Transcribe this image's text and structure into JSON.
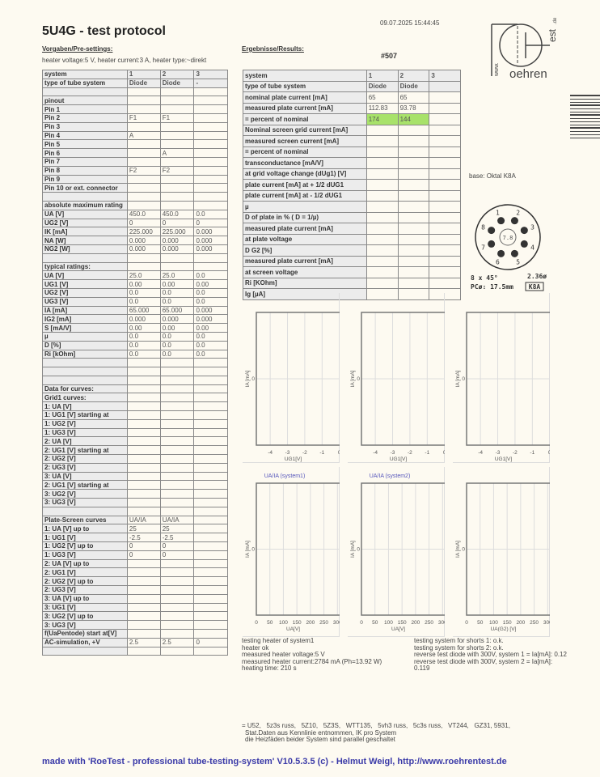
{
  "header": {
    "title": "5U4G  -  test protocol",
    "datetime": "09.07.2025  15:44:45",
    "number": "#507"
  },
  "presettings": {
    "heading": "Vorgaben/Pre-settings:",
    "heater": "heater voltage:5 V, heater current:3 A, heater type:~direkt"
  },
  "results_heading": "Ergebnisse/Results:",
  "left_table": [
    [
      "system",
      "1",
      "2",
      "3"
    ],
    [
      "type of tube system",
      "Diode",
      "Diode",
      "-"
    ],
    [
      "",
      "",
      "",
      ""
    ],
    [
      "pinout",
      "",
      "",
      ""
    ],
    [
      "Pin 1",
      "",
      "",
      ""
    ],
    [
      "Pin 2",
      "F1",
      "F1",
      ""
    ],
    [
      "Pin 3",
      "",
      "",
      ""
    ],
    [
      "Pin 4",
      "A",
      "",
      ""
    ],
    [
      "Pin 5",
      "",
      "",
      ""
    ],
    [
      "Pin 6",
      "",
      "A",
      ""
    ],
    [
      "Pin 7",
      "",
      "",
      ""
    ],
    [
      "Pin 8",
      "F2",
      "F2",
      ""
    ],
    [
      "Pin 9",
      "",
      "",
      ""
    ],
    [
      "Pin 10 or ext. connector",
      "",
      "",
      ""
    ],
    [
      "",
      "",
      "",
      ""
    ],
    [
      "absolute maximum rating",
      "",
      "",
      ""
    ],
    [
      "UA [V]",
      "450.0",
      "450.0",
      "0.0"
    ],
    [
      "UG2 [V]",
      "0",
      "0",
      "0"
    ],
    [
      "IK [mA]",
      "225.000",
      "225.000",
      "0.000"
    ],
    [
      "NA [W]",
      "0.000",
      "0.000",
      "0.000"
    ],
    [
      "NG2 [W]",
      "0.000",
      "0.000",
      "0.000"
    ],
    [
      "",
      "",
      "",
      ""
    ],
    [
      "typical ratings:",
      "",
      "",
      ""
    ],
    [
      "UA [V]",
      "25.0",
      "25.0",
      "0.0"
    ],
    [
      "UG1 [V]",
      "0.00",
      "0.00",
      "0.00"
    ],
    [
      "UG2 [V]",
      "0.0",
      "0.0",
      "0.0"
    ],
    [
      "UG3 [V]",
      "0.0",
      "0.0",
      "0.0"
    ],
    [
      "IA [mA]",
      "65.000",
      "65.000",
      "0.000"
    ],
    [
      "IG2 [mA]",
      "0.000",
      "0.000",
      "0.000"
    ],
    [
      "S [mA/V]",
      "0.00",
      "0.00",
      "0.00"
    ],
    [
      "µ",
      "0.0",
      "0.0",
      "0.0"
    ],
    [
      "D [%]",
      "0.0",
      "0.0",
      "0.0"
    ],
    [
      "Ri [kOhm]",
      "0.0",
      "0.0",
      "0.0"
    ],
    [
      "",
      "",
      "",
      ""
    ],
    [
      "",
      "",
      "",
      ""
    ],
    [
      "",
      "",
      "",
      ""
    ],
    [
      "Data for curves:",
      "",
      "",
      ""
    ],
    [
      "Grid1 curves:",
      "",
      "",
      ""
    ],
    [
      "1: UA [V]",
      "",
      "",
      ""
    ],
    [
      "1: UG1 [V] starting at",
      "",
      "",
      ""
    ],
    [
      "1: UG2 [V]",
      "",
      "",
      ""
    ],
    [
      "1: UG3 [V]",
      "",
      "",
      ""
    ],
    [
      "2: UA [V]",
      "",
      "",
      ""
    ],
    [
      "2: UG1 [V] starting at",
      "",
      "",
      ""
    ],
    [
      "2: UG2 [V]",
      "",
      "",
      ""
    ],
    [
      "2: UG3 [V]",
      "",
      "",
      ""
    ],
    [
      "3: UA [V]",
      "",
      "",
      ""
    ],
    [
      "2: UG1 [V] starting at",
      "",
      "",
      ""
    ],
    [
      "3: UG2 [V]",
      "",
      "",
      ""
    ],
    [
      "3: UG3 [V]",
      "",
      "",
      ""
    ],
    [
      "",
      "",
      "",
      ""
    ],
    [
      "Plate-Screen curves",
      "UA/IA",
      "UA/IA",
      ""
    ],
    [
      "1: UA [V] up to",
      "25",
      "25",
      ""
    ],
    [
      "1: UG1 [V]",
      "-2.5",
      "-2.5",
      ""
    ],
    [
      "1: UG2 [V] up to",
      "0",
      "0",
      ""
    ],
    [
      "1: UG3 [V]",
      "0",
      "0",
      ""
    ],
    [
      "2: UA [V] up to",
      "",
      "",
      ""
    ],
    [
      "2: UG1 [V]",
      "",
      "",
      ""
    ],
    [
      "2: UG2 [V] up to",
      "",
      "",
      ""
    ],
    [
      "2: UG3 [V]",
      "",
      "",
      ""
    ],
    [
      "3: UA [V] up to",
      "",
      "",
      ""
    ],
    [
      "3: UG1 [V]",
      "",
      "",
      ""
    ],
    [
      "3: UG2 [V] up to",
      "",
      "",
      ""
    ],
    [
      "3: UG3 [V]",
      "",
      "",
      ""
    ],
    [
      "f(UaPentode) start at[V]",
      "",
      "",
      ""
    ],
    [
      "AC-simulation, +V",
      "2.5",
      "2.5",
      "0"
    ],
    [
      "",
      "",
      "",
      ""
    ]
  ],
  "right_table": [
    [
      "system",
      "1",
      "2",
      "3"
    ],
    [
      "type of tube system",
      "Diode",
      "Diode",
      ""
    ],
    [
      "nominal plate current [mA]",
      "65",
      "65",
      ""
    ],
    [
      "measured plate current [mA]",
      "112.83",
      "93.78",
      ""
    ],
    [
      "= percent of nominal",
      "174",
      "144",
      ""
    ],
    [
      "Nominal screen grid current [mA]",
      "",
      "",
      ""
    ],
    [
      "measured screen current [mA]",
      "",
      "",
      ""
    ],
    [
      "= percent of nominal",
      "",
      "",
      ""
    ],
    [
      "transconductance [mA/V]",
      "",
      "",
      ""
    ],
    [
      "at grid voltage change (dUg1) [V]",
      "",
      "",
      ""
    ],
    [
      "plate current [mA] at + 1/2 dUG1",
      "",
      "",
      ""
    ],
    [
      "plate current [mA] at - 1/2 dUG1",
      "",
      "",
      ""
    ],
    [
      "µ",
      "",
      "",
      ""
    ],
    [
      "D of plate in % ( D = 1/µ)",
      "",
      "",
      ""
    ],
    [
      "measured plate current [mA]",
      "",
      "",
      ""
    ],
    [
      "at plate voltage",
      "",
      "",
      ""
    ],
    [
      "D G2 [%]",
      "",
      "",
      ""
    ],
    [
      "measured plate current [mA]",
      "",
      "",
      ""
    ],
    [
      "at screen voltage",
      "",
      "",
      ""
    ],
    [
      "Ri [KOhm]",
      "",
      "",
      ""
    ],
    [
      "Ig [µA]",
      "",
      "",
      ""
    ]
  ],
  "highlight_color": "#a8e26a",
  "logo": {
    "text": "www.Roehrentest.de"
  },
  "base": {
    "label": "base: Oktal K8A",
    "pins": [
      "1",
      "2",
      "3",
      "4",
      "5",
      "6",
      "7",
      "8"
    ],
    "center": "7.8",
    "spec1": "8 x 45°",
    "spec2": "2.36ø",
    "spec3": "PCø: 17.5mm",
    "code": "K8A"
  },
  "chart_data": [
    {
      "type": "scatter",
      "title": "",
      "xlabel": "UG1[V]",
      "ylabel": "IA [mA]",
      "xlim": [
        -4.8,
        0
      ],
      "xticks": [
        "-4",
        "-3",
        "-2",
        "-1",
        "0"
      ],
      "yticks": [
        "0"
      ],
      "grid": true,
      "series": []
    },
    {
      "type": "scatter",
      "title": "",
      "xlabel": "UG1[V]",
      "ylabel": "IA [mA]",
      "xlim": [
        -4.8,
        0
      ],
      "xticks": [
        "-4",
        "-3",
        "-2",
        "-1",
        "0"
      ],
      "yticks": [
        "0"
      ],
      "grid": true,
      "series": []
    },
    {
      "type": "scatter",
      "title": "",
      "xlabel": "UG1[V]",
      "ylabel": "IA [mA]",
      "xlim": [
        -4.8,
        0
      ],
      "xticks": [
        "-4",
        "-3",
        "-2",
        "-1",
        "0"
      ],
      "yticks": [
        "0"
      ],
      "grid": true,
      "series": []
    },
    {
      "type": "scatter",
      "title": "UA/IA (system1)",
      "xlabel": "UA[V]",
      "ylabel": "IA [mA]",
      "xlim": [
        0,
        300
      ],
      "xticks": [
        "0",
        "50",
        "100",
        "150",
        "200",
        "250",
        "300"
      ],
      "yticks": [
        "0"
      ],
      "grid": true,
      "series": []
    },
    {
      "type": "scatter",
      "title": "UA/IA (system2)",
      "xlabel": "UA[V]",
      "ylabel": "IA [mA]",
      "xlim": [
        0,
        300
      ],
      "xticks": [
        "0",
        "50",
        "100",
        "150",
        "200",
        "250",
        "300"
      ],
      "yticks": [
        "0"
      ],
      "grid": true,
      "series": []
    },
    {
      "type": "scatter",
      "title": "",
      "xlabel": "UA(G2) [V]",
      "ylabel": "IA [mA]",
      "xlim": [
        0,
        300
      ],
      "xticks": [
        "0",
        "50",
        "100",
        "150",
        "200",
        "250",
        "300"
      ],
      "yticks": [
        "0"
      ],
      "grid": true,
      "series": []
    }
  ],
  "notes_left": [
    "testing heater of system1",
    "heater ok",
    "measured heater voltage:5 V",
    "measured heater current:2784 mA (Ph=13.92 W)",
    "heating time: 210 s"
  ],
  "notes_right": [
    "testing system for shorts 1: o.k.",
    "testing system for shorts 2: o.k.",
    "reverse test diode with 300V, system 1 = Ia[mA]: 0.12",
    "reverse test diode with 300V, system 2 = Ia[mA]:",
    "0.119"
  ],
  "remarks": [
    "= U52,   5z3s russ,   5Z10,   5Z3S,   WTT135,   5vh3 russ,   5c3s russ,   VT244,   GZ31, 5931,",
    "Stat.Daten aus Kennlinie entnommen, IK pro System",
    "die Heizfäden beider System sind parallel geschaltet"
  ],
  "footer": "made with 'RoeTest - professional tube-testing-system' V10.5.3.5 (c) - Helmut Weigl, http://www.roehrentest.de"
}
